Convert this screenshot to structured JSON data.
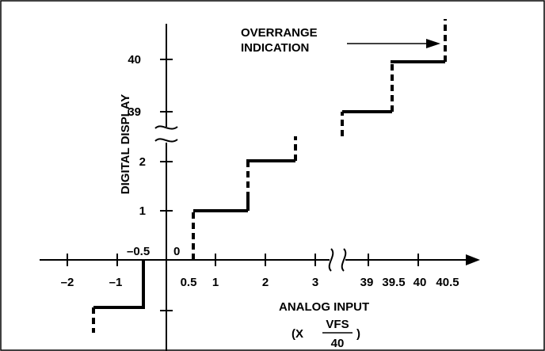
{
  "x_axis": {
    "title": "ANALOG INPUT",
    "scale_prefix": "(X",
    "scale_numerator": "VFS",
    "scale_denominator": "40",
    "scale_suffix": ")",
    "tick_labels": [
      "–2",
      "–1",
      "0.5",
      "1",
      "2",
      "3",
      "39",
      "39.5",
      "40",
      "40.5"
    ],
    "origin_labels": [
      "–0.5",
      "0"
    ]
  },
  "y_axis": {
    "title": "DIGITAL DISPLAY",
    "tick_labels": [
      "40",
      "39",
      "2",
      "1"
    ]
  },
  "annotation": {
    "line1": "OVERRANGE",
    "line2": "INDICATION"
  }
}
